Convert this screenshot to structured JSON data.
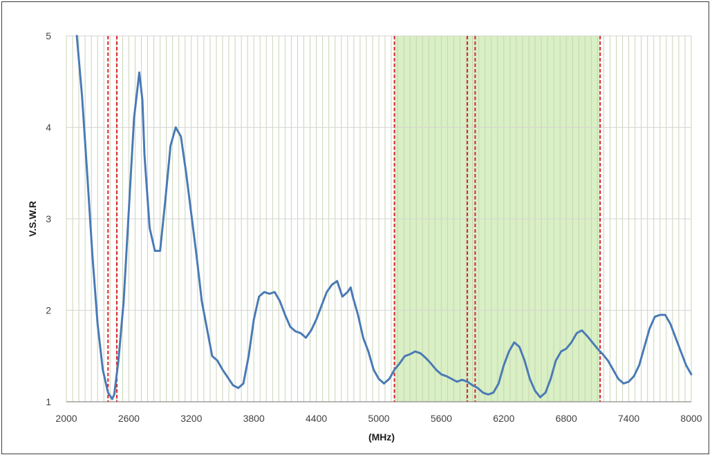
{
  "chart_data": {
    "type": "line",
    "xlabel": "(MHz)",
    "ylabel": "V.S.W.R",
    "xlim": [
      2000,
      8000
    ],
    "ylim": [
      1,
      5
    ],
    "x_ticks": [
      2000,
      2600,
      3200,
      3800,
      4400,
      5000,
      5600,
      6200,
      6800,
      7400,
      8000
    ],
    "x_tick_labels": [
      "2000",
      "2600",
      "3200",
      "3800",
      "4400",
      "5000",
      "5600",
      "6200",
      "6800",
      "7400",
      "8000"
    ],
    "y_ticks": [
      1,
      2,
      3,
      4,
      5
    ],
    "y_tick_labels": [
      "1",
      "2",
      "3",
      "4",
      "5"
    ],
    "grid": {
      "major_horizontal": true,
      "minor_vertical_step": 60
    },
    "series": [
      {
        "color": "#4a7ab5",
        "x": [
          2100,
          2150,
          2200,
          2250,
          2300,
          2350,
          2400,
          2440,
          2460,
          2500,
          2550,
          2600,
          2650,
          2700,
          2730,
          2750,
          2800,
          2850,
          2900,
          2950,
          3000,
          3050,
          3100,
          3150,
          3200,
          3250,
          3300,
          3350,
          3400,
          3450,
          3500,
          3600,
          3650,
          3700,
          3750,
          3800,
          3850,
          3900,
          3950,
          4000,
          4050,
          4100,
          4150,
          4200,
          4250,
          4300,
          4350,
          4400,
          4450,
          4500,
          4550,
          4600,
          4650,
          4700,
          4730,
          4750,
          4800,
          4850,
          4900,
          4950,
          5000,
          5050,
          5100,
          5150,
          5200,
          5250,
          5300,
          5350,
          5400,
          5450,
          5500,
          5550,
          5600,
          5650,
          5700,
          5750,
          5800,
          5850,
          5900,
          5950,
          6000,
          6050,
          6100,
          6150,
          6200,
          6250,
          6300,
          6350,
          6400,
          6450,
          6500,
          6550,
          6600,
          6650,
          6700,
          6750,
          6800,
          6850,
          6900,
          6950,
          7000,
          7050,
          7100,
          7150,
          7200,
          7250,
          7300,
          7350,
          7400,
          7450,
          7500,
          7550,
          7600,
          7650,
          7700,
          7750,
          7800,
          7850,
          7900,
          7950,
          8000
        ],
        "values": [
          5.0,
          4.35,
          3.5,
          2.6,
          1.85,
          1.35,
          1.1,
          1.03,
          1.08,
          1.45,
          2.1,
          3.1,
          4.1,
          4.6,
          4.3,
          3.7,
          2.9,
          2.65,
          2.65,
          3.2,
          3.8,
          4.0,
          3.9,
          3.5,
          3.05,
          2.6,
          2.1,
          1.8,
          1.5,
          1.45,
          1.35,
          1.18,
          1.15,
          1.2,
          1.5,
          1.9,
          2.15,
          2.2,
          2.18,
          2.2,
          2.1,
          1.95,
          1.82,
          1.77,
          1.75,
          1.7,
          1.78,
          1.9,
          2.05,
          2.2,
          2.28,
          2.32,
          2.15,
          2.2,
          2.25,
          2.15,
          1.95,
          1.7,
          1.55,
          1.35,
          1.25,
          1.2,
          1.25,
          1.35,
          1.42,
          1.5,
          1.52,
          1.55,
          1.53,
          1.48,
          1.42,
          1.35,
          1.3,
          1.28,
          1.25,
          1.22,
          1.24,
          1.22,
          1.18,
          1.15,
          1.1,
          1.08,
          1.1,
          1.2,
          1.4,
          1.55,
          1.65,
          1.6,
          1.45,
          1.25,
          1.12,
          1.05,
          1.1,
          1.25,
          1.45,
          1.55,
          1.58,
          1.65,
          1.75,
          1.78,
          1.72,
          1.65,
          1.58,
          1.52,
          1.45,
          1.35,
          1.25,
          1.2,
          1.22,
          1.28,
          1.4,
          1.6,
          1.8,
          1.93,
          1.95,
          1.95,
          1.85,
          1.7,
          1.55,
          1.4,
          1.3
        ]
      }
    ],
    "bands": [
      {
        "from": 5150,
        "to": 7125,
        "color": "#d9efc4"
      }
    ],
    "markers": [
      {
        "x": 2400,
        "color": "#d9232e"
      },
      {
        "x": 2485,
        "color": "#d9232e"
      },
      {
        "x": 5150,
        "color": "#d9232e"
      },
      {
        "x": 5850,
        "color": "#d9232e"
      },
      {
        "x": 5925,
        "color": "#d9232e"
      },
      {
        "x": 7125,
        "color": "#d9232e"
      }
    ]
  }
}
